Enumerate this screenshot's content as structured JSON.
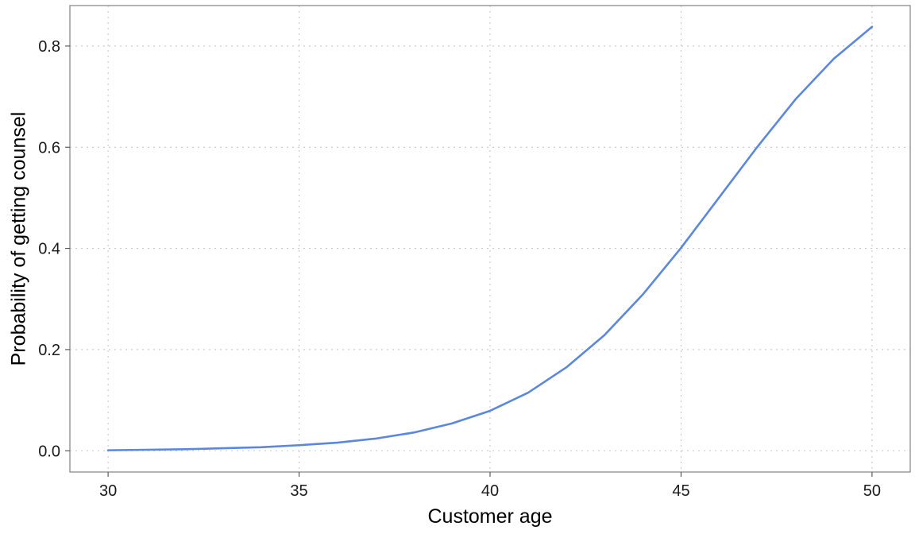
{
  "chart_data": {
    "type": "line",
    "title": "",
    "xlabel": "Customer age",
    "ylabel": "Probability of getting counsel",
    "xlim": [
      29.0,
      51.0
    ],
    "ylim": [
      -0.042,
      0.88
    ],
    "x_ticks": [
      30,
      35,
      40,
      45,
      50
    ],
    "x_tick_labels": [
      "30",
      "35",
      "40",
      "45",
      "50"
    ],
    "y_ticks": [
      0.0,
      0.2,
      0.4,
      0.6,
      0.8
    ],
    "y_tick_labels": [
      "0.0",
      "0.2",
      "0.4",
      "0.6",
      "0.8"
    ],
    "grid": true,
    "legend": "none",
    "line_color": "#5b87df",
    "series": [
      {
        "x": [
          30,
          31,
          32,
          33,
          34,
          35,
          36,
          37,
          38,
          39,
          40,
          41,
          42,
          43,
          44,
          45,
          46,
          47,
          48,
          49,
          50
        ],
        "y": [
          0.001,
          0.002,
          0.003,
          0.005,
          0.007,
          0.011,
          0.016,
          0.024,
          0.036,
          0.054,
          0.079,
          0.115,
          0.165,
          0.229,
          0.309,
          0.401,
          0.501,
          0.601,
          0.695,
          0.775,
          0.838
        ]
      }
    ]
  }
}
